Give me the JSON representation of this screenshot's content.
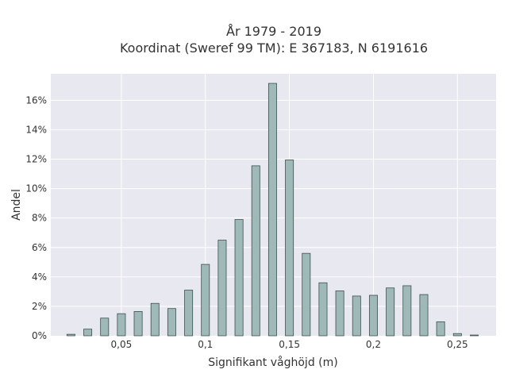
{
  "chart_data": {
    "type": "bar",
    "title_line1": "År 1979 - 2019",
    "title_line2": "Koordinat (Sweref 99 TM): E 367183, N 6191616",
    "xlabel": "Signifikant våghöjd (m)",
    "ylabel": "Andel",
    "xlim": [
      0.008,
      0.273
    ],
    "ylim": [
      0,
      17.8
    ],
    "x_ticks": [
      {
        "value": 0.05,
        "label": "0,05"
      },
      {
        "value": 0.1,
        "label": "0,1"
      },
      {
        "value": 0.15,
        "label": "0,15"
      },
      {
        "value": 0.2,
        "label": "0,2"
      },
      {
        "value": 0.25,
        "label": "0,25"
      }
    ],
    "y_ticks": [
      {
        "value": 0,
        "label": "0%"
      },
      {
        "value": 2,
        "label": "2%"
      },
      {
        "value": 4,
        "label": "4%"
      },
      {
        "value": 6,
        "label": "6%"
      },
      {
        "value": 8,
        "label": "8%"
      },
      {
        "value": 10,
        "label": "10%"
      },
      {
        "value": 12,
        "label": "12%"
      },
      {
        "value": 14,
        "label": "14%"
      },
      {
        "value": 16,
        "label": "16%"
      }
    ],
    "bar_width": 0.0048,
    "x": [
      0.02,
      0.03,
      0.04,
      0.05,
      0.06,
      0.07,
      0.08,
      0.09,
      0.1,
      0.11,
      0.12,
      0.13,
      0.14,
      0.15,
      0.16,
      0.17,
      0.18,
      0.19,
      0.2,
      0.21,
      0.22,
      0.23,
      0.24,
      0.25,
      0.26
    ],
    "values": [
      0.1,
      0.45,
      1.2,
      1.5,
      1.65,
      2.2,
      1.85,
      3.1,
      4.85,
      6.5,
      7.9,
      11.55,
      17.15,
      11.95,
      5.6,
      3.6,
      3.05,
      2.7,
      2.75,
      3.25,
      3.4,
      2.8,
      0.95,
      0.15,
      0.05
    ],
    "colors": {
      "bar_fill": "#9fb8b8",
      "bar_stroke": "#3d5050",
      "plot_bg": "#e8e8f0",
      "grid": "#ffffff"
    }
  }
}
